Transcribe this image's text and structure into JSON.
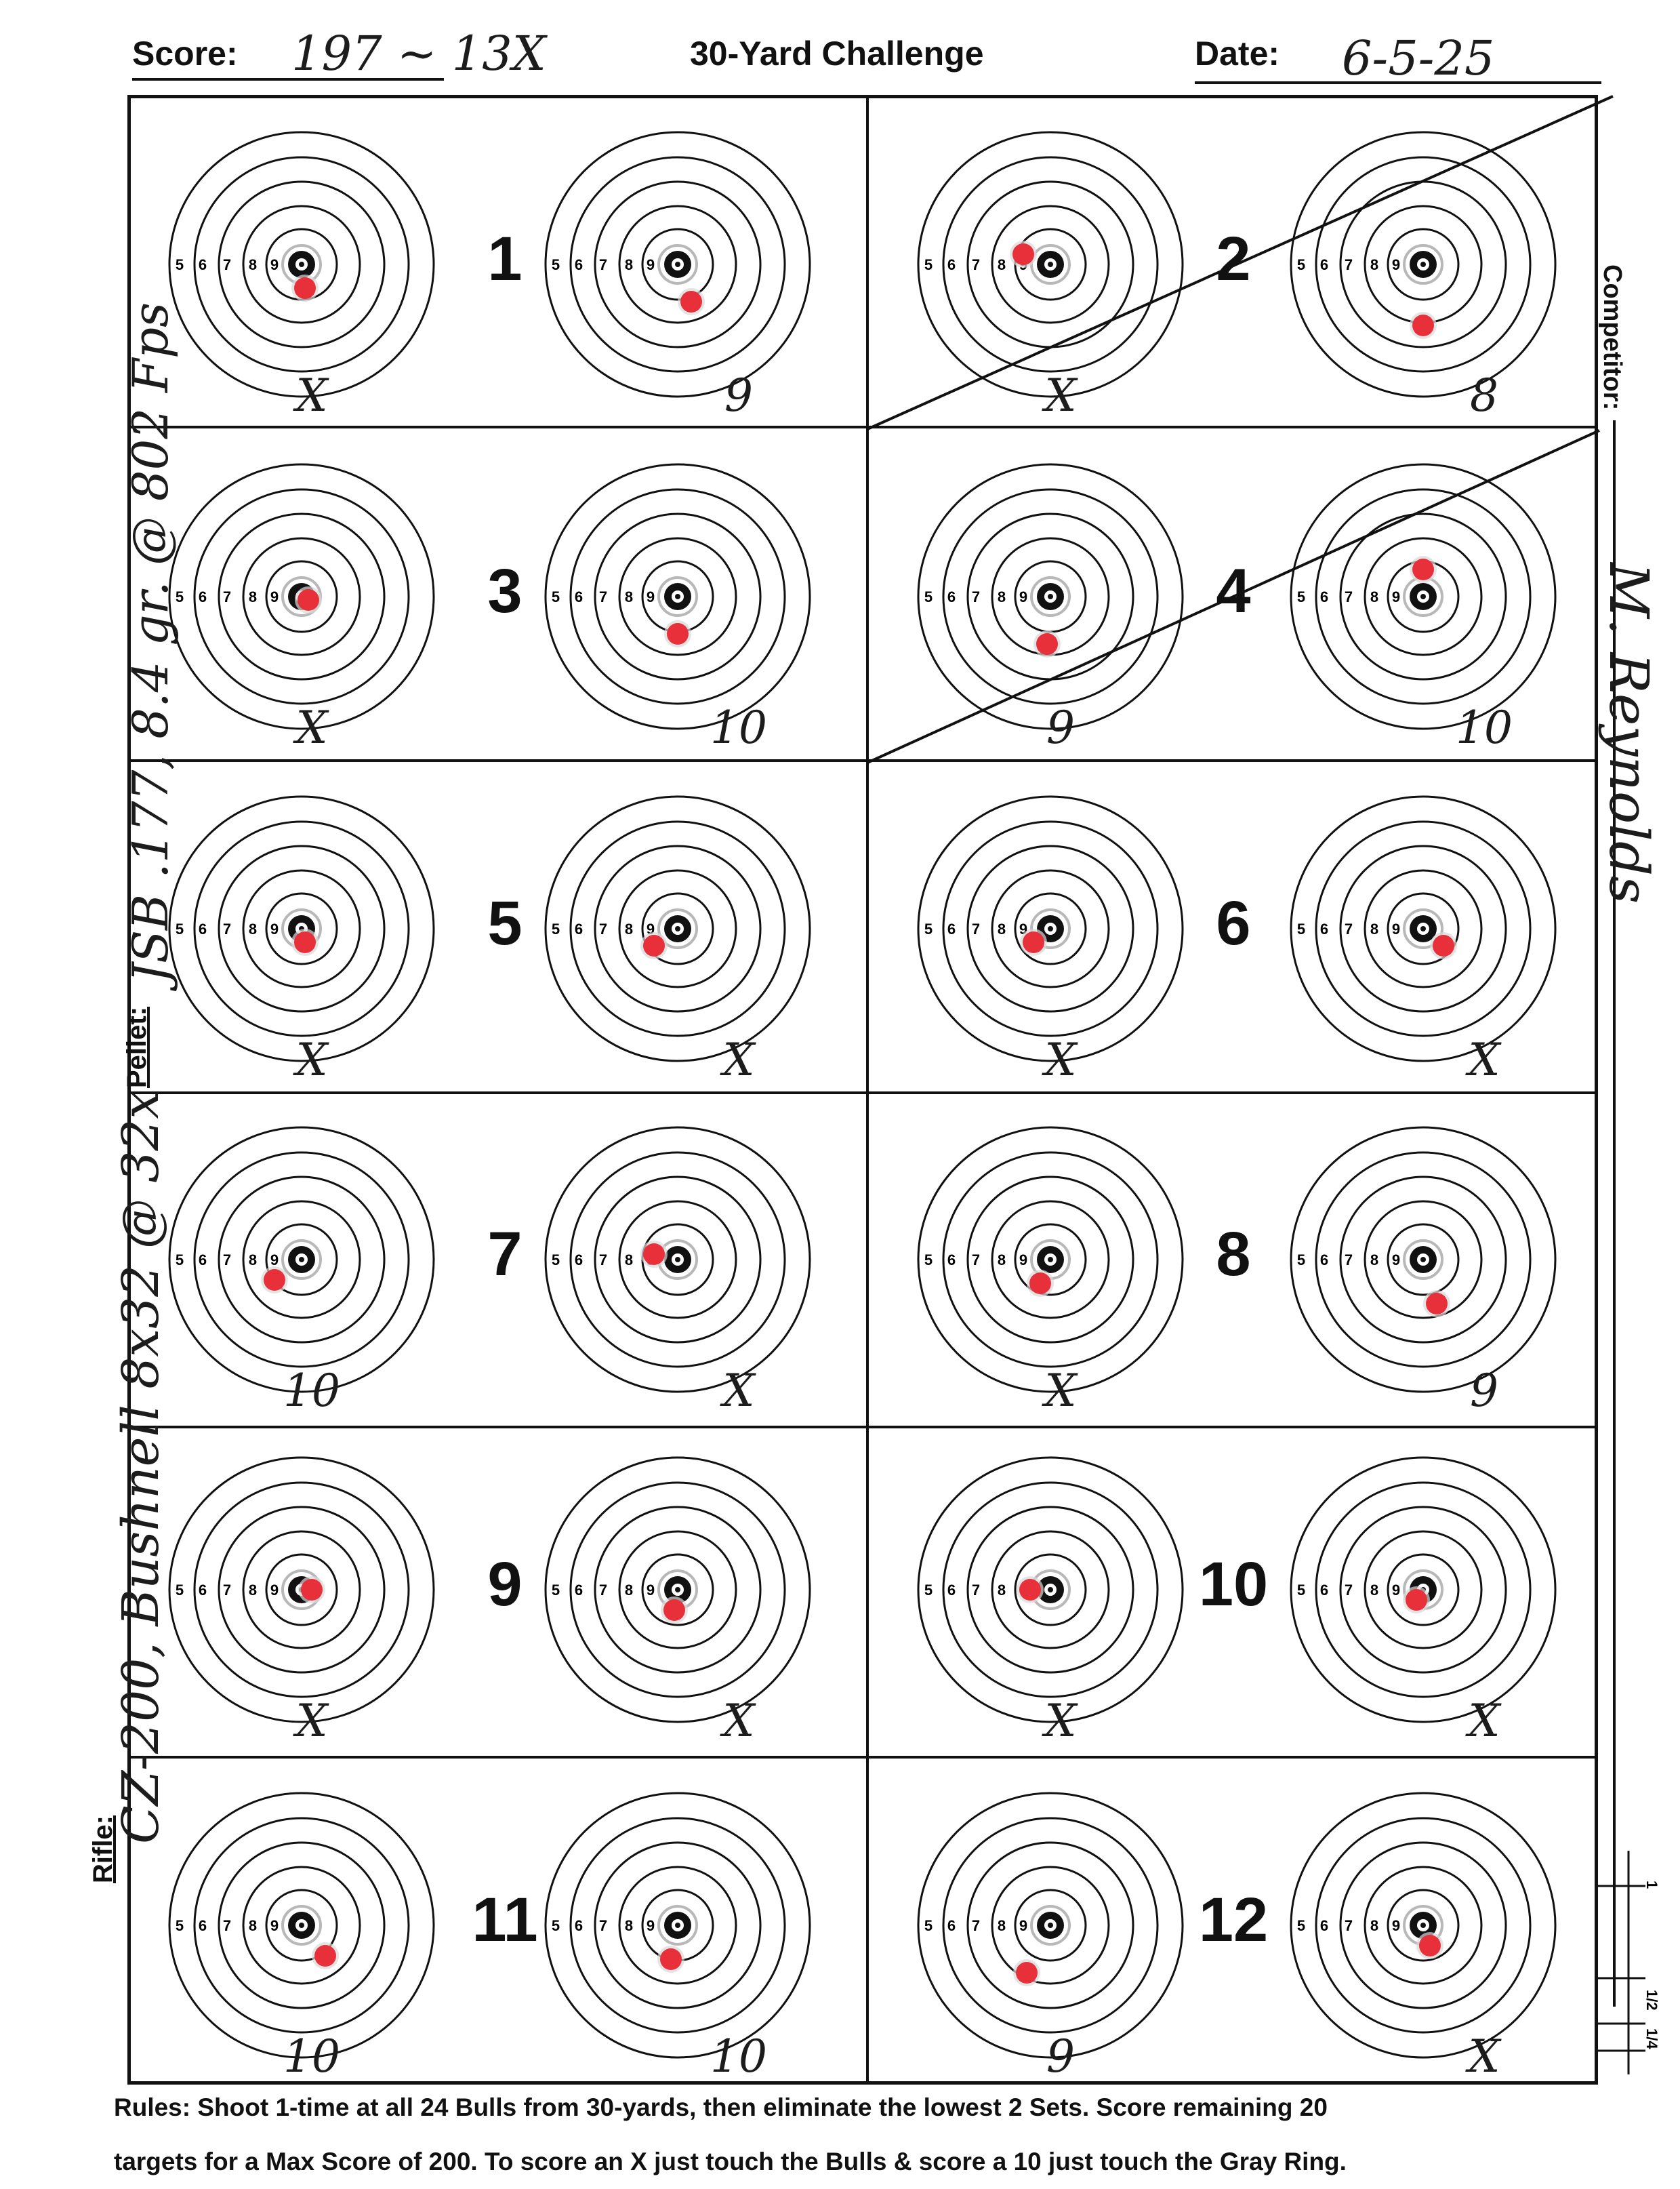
{
  "header": {
    "score_label": "Score:",
    "score_value": "197 ~ 13X",
    "title": "30-Yard Challenge",
    "date_label": "Date:",
    "date_value": "6-5-25"
  },
  "target_ring_labels": [
    "5",
    "6",
    "7",
    "8",
    "9"
  ],
  "sets": [
    {
      "number": "1",
      "marks": [
        "X",
        "9"
      ]
    },
    {
      "number": "2",
      "marks": [
        "X",
        "8"
      ]
    },
    {
      "number": "3",
      "marks": [
        "X",
        "10"
      ]
    },
    {
      "number": "4",
      "marks": [
        "9",
        "10"
      ]
    },
    {
      "number": "5",
      "marks": [
        "X",
        "X"
      ]
    },
    {
      "number": "6",
      "marks": [
        "X",
        "X"
      ]
    },
    {
      "number": "7",
      "marks": [
        "10",
        "X"
      ]
    },
    {
      "number": "8",
      "marks": [
        "X",
        "9"
      ]
    },
    {
      "number": "9",
      "marks": [
        "X",
        "X"
      ]
    },
    {
      "number": "10",
      "marks": [
        "X",
        "X"
      ]
    },
    {
      "number": "11",
      "marks": [
        "10",
        "10"
      ]
    },
    {
      "number": "12",
      "marks": [
        "9",
        "X"
      ]
    }
  ],
  "left_margin": {
    "rifle_label": "Rifle:",
    "rifle_value": "CZ-200, Bushnell 8x32 @ 32x",
    "pellet_label": "Pellet:",
    "pellet_value": "JSB .177, 8.4 gr. @ 802 Fps"
  },
  "right_margin": {
    "competitor_label": "Competitor:",
    "competitor_value": "M. Reynolds"
  },
  "scale_labels": [
    "1",
    "1/2",
    "1/4"
  ],
  "rules": {
    "line1": "Rules: Shoot 1-time at all 24 Bulls from 30-yards, then eliminate the lowest 2 Sets. Score remaining 20",
    "line2": "targets for a Max Score of 200. To score an X just touch the Bulls & score a 10 just touch the Gray Ring."
  },
  "colors": {
    "ink": "#111111",
    "pellet_hole": "#e8303a",
    "ten_ring": "#b8b8b8"
  }
}
